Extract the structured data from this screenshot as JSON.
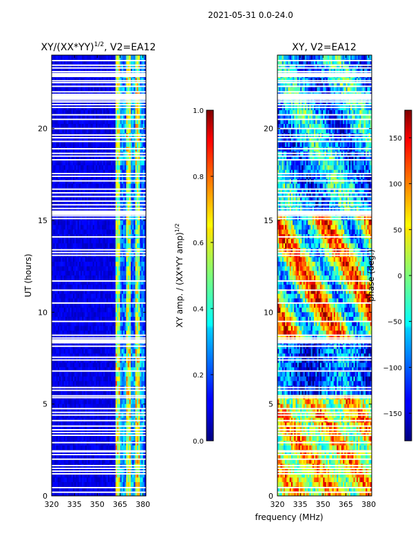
{
  "chart_data": {
    "suptitle": "2021-05-31 0.0-24.0",
    "xlabel": "frequency (MHz)",
    "panels": [
      {
        "id": "amp",
        "type": "heatmap",
        "title": "XY/(XX*YY)^{1/2}, V2=EA12",
        "title_main": "XY/(XX*YY)",
        "title_sup": "1/2",
        "title_tail": ", V2=EA12",
        "ylabel": "UT (hours)",
        "xlim": [
          320,
          382
        ],
        "ylim": [
          0,
          24
        ],
        "xticks": [
          320,
          335,
          350,
          365,
          380
        ],
        "yticks": [
          0,
          5,
          10,
          15,
          20
        ],
        "colorbar": {
          "label": "XY amp. / (XX*YY amp)^{1/2}",
          "label_main": "XY amp. / (XX*YY amp)",
          "label_sup": "1/2",
          "range": [
            0.0,
            1.0
          ],
          "ticks": [
            "0.0",
            "0.2",
            "0.4",
            "0.6",
            "0.8",
            "1.0"
          ]
        }
      },
      {
        "id": "phase",
        "type": "heatmap",
        "title": "XY, V2=EA12",
        "ylabel": "",
        "xlim": [
          320,
          382
        ],
        "ylim": [
          0,
          24
        ],
        "xticks": [
          320,
          335,
          350,
          365,
          380
        ],
        "yticks": [
          0,
          5,
          10,
          15,
          20
        ],
        "colorbar": {
          "label": "phase (deg.)",
          "range": [
            -180,
            180
          ],
          "ticks": [
            "−150",
            "−100",
            "−50",
            "0",
            "50",
            "100",
            "150"
          ]
        }
      }
    ],
    "flagged_ut_rows": [
      0.2,
      0.45,
      1.2,
      1.35,
      1.5,
      1.65,
      2.0,
      2.25,
      2.4,
      2.45,
      2.9,
      3.3,
      3.45,
      3.6,
      3.8,
      4.1,
      4.4,
      4.55,
      4.75,
      5.35,
      5.45,
      5.75,
      5.9,
      6.8,
      7.4,
      7.55,
      8.15,
      8.5,
      8.6,
      8.75,
      9.5,
      10.5,
      11.2,
      11.7,
      13.1,
      13.25,
      13.4,
      14.1,
      15.1,
      15.25,
      15.5,
      15.65,
      15.85,
      16.05,
      16.3,
      16.5,
      16.7,
      17.15,
      17.4,
      17.55,
      18.3,
      18.5,
      18.65,
      18.9,
      19.3,
      19.5,
      19.65,
      20.0,
      20.5,
      20.75,
      21.15,
      21.3,
      21.45,
      21.55,
      22.0,
      22.3,
      22.5,
      22.6,
      23.0,
      23.1,
      23.3,
      23.45,
      23.7
    ],
    "flagged_ut_bands": [
      [
        15.3,
        15.5
      ],
      [
        21.6,
        21.9
      ],
      [
        22.8,
        23.0
      ],
      [
        8.3,
        8.5
      ]
    ]
  }
}
